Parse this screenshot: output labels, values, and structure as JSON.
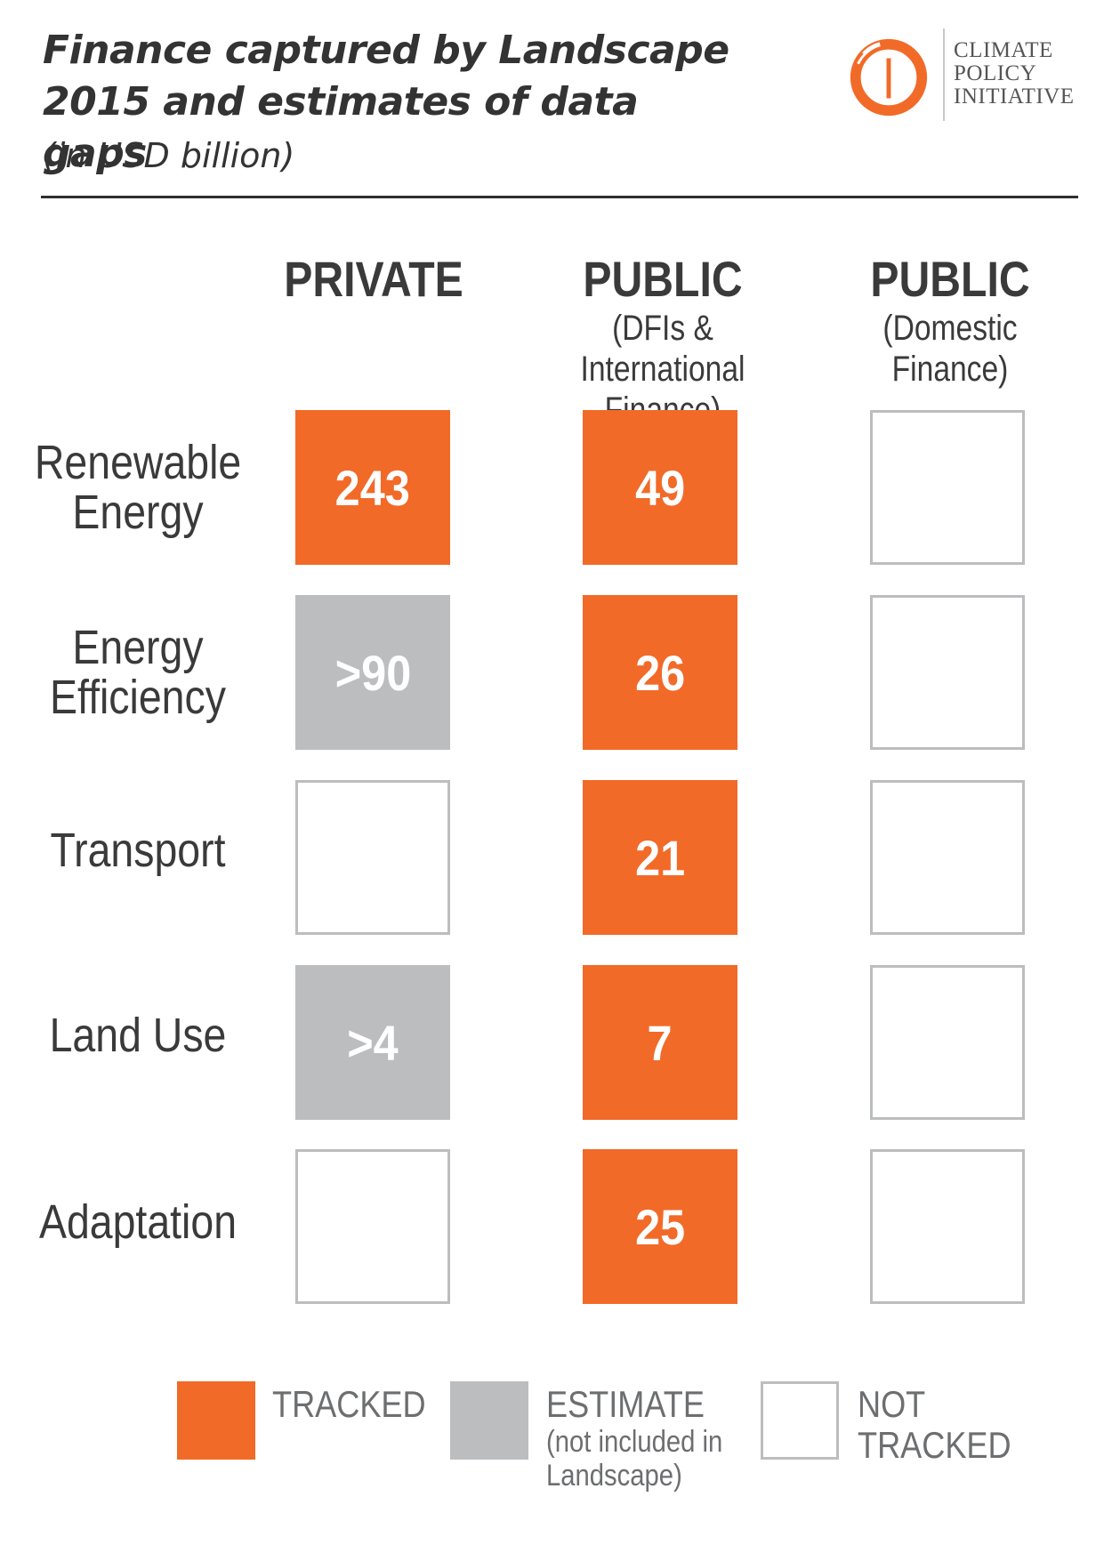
{
  "title_line1": "Finance captured by Landscape",
  "title_line2": "2015 and estimates of data gaps",
  "subtitle": "(in USD billion)",
  "logo": {
    "line1": "CLIMATE",
    "line2": "POLICY",
    "line3": "INITIATIVE",
    "color": "#f26a28"
  },
  "colors": {
    "tracked": "#f26a28",
    "estimate": "#bcbdbf",
    "not_tracked_border": "#bcbdbf"
  },
  "chart_data": {
    "type": "table",
    "title": "Finance captured by Landscape 2015 and estimates of data gaps",
    "subtitle": "(in USD billion)",
    "columns": [
      {
        "label": "PRIVATE",
        "sublabel_line1": "",
        "sublabel_line2": ""
      },
      {
        "label": "PUBLIC",
        "sublabel_line1": "(DFIs & International",
        "sublabel_line2": "Finance)"
      },
      {
        "label": "PUBLIC",
        "sublabel_line1": "(Domestic Finance)",
        "sublabel_line2": ""
      }
    ],
    "rows": [
      {
        "label_line1": "Renewable",
        "label_line2": "Energy",
        "cells": [
          {
            "status": "tracked",
            "value": "243"
          },
          {
            "status": "tracked",
            "value": "49"
          },
          {
            "status": "not-tracked",
            "value": ""
          }
        ]
      },
      {
        "label_line1": "Energy",
        "label_line2": "Efficiency",
        "cells": [
          {
            "status": "estimate",
            "value": ">90"
          },
          {
            "status": "tracked",
            "value": "26"
          },
          {
            "status": "not-tracked",
            "value": ""
          }
        ]
      },
      {
        "label_line1": "Transport",
        "label_line2": "",
        "cells": [
          {
            "status": "not-tracked",
            "value": ""
          },
          {
            "status": "tracked",
            "value": "21"
          },
          {
            "status": "not-tracked",
            "value": ""
          }
        ]
      },
      {
        "label_line1": "Land Use",
        "label_line2": "",
        "cells": [
          {
            "status": "estimate",
            "value": ">4"
          },
          {
            "status": "tracked",
            "value": "7"
          },
          {
            "status": "not-tracked",
            "value": ""
          }
        ]
      },
      {
        "label_line1": "Adaptation",
        "label_line2": "",
        "cells": [
          {
            "status": "not-tracked",
            "value": ""
          },
          {
            "status": "tracked",
            "value": "25"
          },
          {
            "status": "not-tracked",
            "value": ""
          }
        ]
      }
    ],
    "legend": [
      {
        "status": "tracked",
        "label": "TRACKED",
        "note_line1": "",
        "note_line2": ""
      },
      {
        "status": "estimate",
        "label": "ESTIMATE",
        "note_line1": "(not included in",
        "note_line2": "Landscape)"
      },
      {
        "status": "not-tracked",
        "label": "NOT TRACKED",
        "note_line1": "",
        "note_line2": ""
      }
    ]
  }
}
